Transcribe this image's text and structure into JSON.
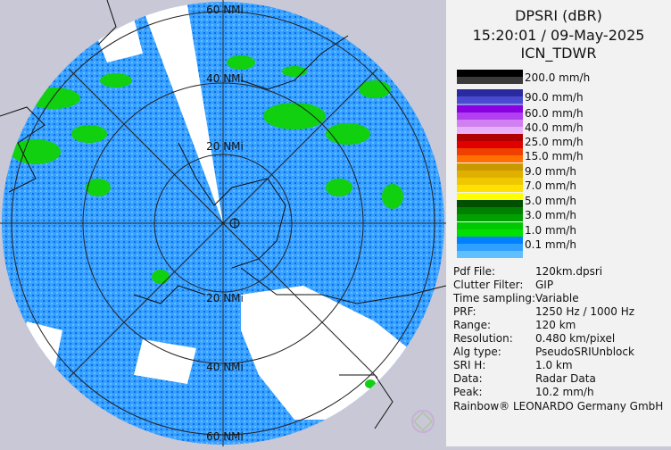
{
  "title": {
    "product": "DPSRI (dBR)",
    "datetime": "15:20:01 / 09-May-2025",
    "site": "ICN_TDWR"
  },
  "range_rings": [
    "20 NMi",
    "40 NMi",
    "60 NMi"
  ],
  "legend": [
    {
      "label": "200.0 mm/h",
      "colors": [
        "#000000",
        "#3a3a3a"
      ]
    },
    {
      "label": "90.0 mm/h",
      "colors": [
        "#2a2aa0",
        "#4a4ad0",
        "#8a8ae8"
      ]
    },
    {
      "label": "60.0 mm/h",
      "colors": [
        "#8a00e0",
        "#b040f0"
      ]
    },
    {
      "label": "40.0 mm/h",
      "colors": [
        "#d080f0",
        "#e8b0f8"
      ]
    },
    {
      "label": "25.0 mm/h",
      "colors": [
        "#b00000",
        "#e00000"
      ]
    },
    {
      "label": "15.0 mm/h",
      "colors": [
        "#f04000",
        "#ff7000"
      ]
    },
    {
      "label": "9.0 mm/h",
      "colors": [
        "#c89a00",
        "#e0b000"
      ]
    },
    {
      "label": "7.0 mm/h",
      "colors": [
        "#f0c800",
        "#ffe000"
      ]
    },
    {
      "label": "5.0 mm/h",
      "colors": [
        "#ffff00",
        "#005000"
      ]
    },
    {
      "label": "3.0 mm/h",
      "colors": [
        "#008000",
        "#00a000"
      ]
    },
    {
      "label": "1.0 mm/h",
      "colors": [
        "#00c800",
        "#00e000"
      ]
    },
    {
      "label": "0.1 mm/h",
      "colors": [
        "#0080ff",
        "#30a0ff",
        "#60c0ff"
      ]
    }
  ],
  "info": [
    {
      "key": "Pdf File:",
      "value": "120km.dpsri"
    },
    {
      "key": "Clutter Filter:",
      "value": "GIP"
    },
    {
      "key": "Time sampling:",
      "value": "Variable"
    },
    {
      "key": "PRF:",
      "value": "1250 Hz / 1000 Hz"
    },
    {
      "key": "Range:",
      "value": "120 km"
    },
    {
      "key": "Resolution:",
      "value": "0.480 km/pixel"
    },
    {
      "key": "Alg type:",
      "value": "PseudoSRIUnblock"
    },
    {
      "key": "SRI H:",
      "value": "1.0 km"
    },
    {
      "key": "Data:",
      "value": "Radar Data"
    },
    {
      "key": "Peak:",
      "value": "10.2 mm/h"
    }
  ],
  "footer": "Rainbow® LEONARDO Germany GmbH",
  "colors": {
    "background": "#c8c8d6",
    "precip_light": "#0080ff",
    "precip_medium": "#00c800",
    "no_data": "#ffffff"
  }
}
